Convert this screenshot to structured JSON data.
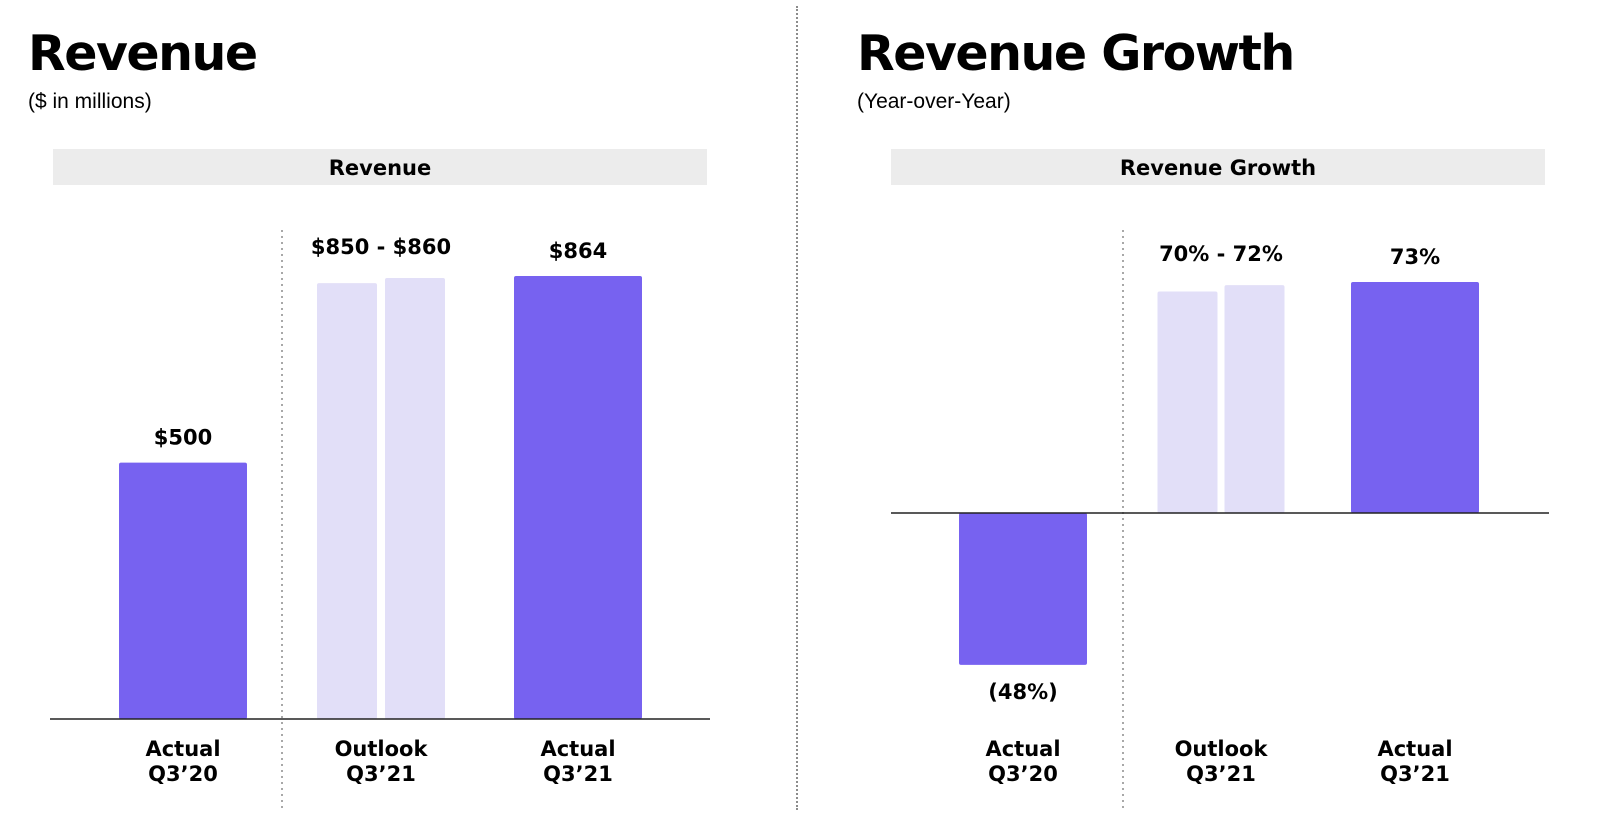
{
  "colors": {
    "actual": "#7762f0",
    "outlook": "#e2dff8",
    "header_band": "#ececec",
    "axis": "#222222",
    "separator": "#8c8c8c"
  },
  "panels": [
    {
      "title": "Revenue",
      "subtitle": "($ in millions)"
    },
    {
      "title": "Revenue Growth",
      "subtitle": "(Year-over-Year)"
    }
  ],
  "chart_data": [
    {
      "type": "bar",
      "title": "Revenue",
      "xlabel": "",
      "ylabel": "",
      "ylim": [
        0,
        864
      ],
      "grid": false,
      "baseline": 0,
      "categories": [
        [
          "Actual",
          "Q3’20"
        ],
        [
          "Outlook",
          "Q3’21"
        ],
        [
          "Actual",
          "Q3’21"
        ]
      ],
      "bars": [
        {
          "category_index": 0,
          "kind": "actual",
          "value": 500
        },
        {
          "category_index": 1,
          "kind": "outlook",
          "value": 850
        },
        {
          "category_index": 1,
          "kind": "outlook",
          "value": 860
        },
        {
          "category_index": 2,
          "kind": "actual",
          "value": 864
        }
      ],
      "data_labels": [
        "$500",
        "$850 - $860",
        "$864"
      ]
    },
    {
      "type": "bar",
      "title": "Revenue Growth",
      "xlabel": "",
      "ylabel": "",
      "ylim": [
        -48,
        73
      ],
      "grid": false,
      "baseline": 0,
      "categories": [
        [
          "Actual",
          "Q3’20"
        ],
        [
          "Outlook",
          "Q3’21"
        ],
        [
          "Actual",
          "Q3’21"
        ]
      ],
      "bars": [
        {
          "category_index": 0,
          "kind": "actual",
          "value": -48
        },
        {
          "category_index": 1,
          "kind": "outlook",
          "value": 70
        },
        {
          "category_index": 1,
          "kind": "outlook",
          "value": 72
        },
        {
          "category_index": 2,
          "kind": "actual",
          "value": 73
        }
      ],
      "data_labels": [
        "(48%)",
        "70% - 72%",
        "73%"
      ]
    }
  ]
}
